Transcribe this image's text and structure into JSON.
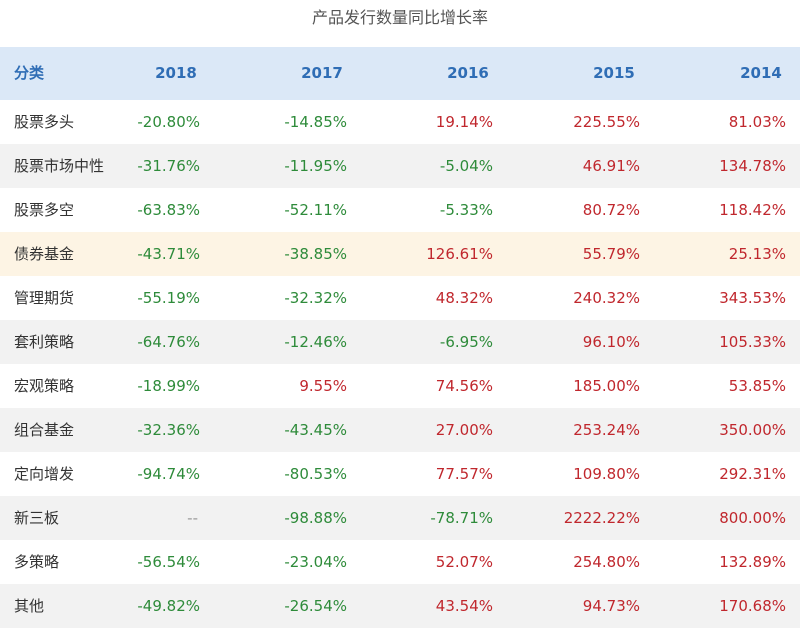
{
  "title": "产品发行数量同比增长率",
  "table": {
    "header": [
      "分类",
      "2018",
      "2017",
      "2016",
      "2015",
      "2014"
    ],
    "rows": [
      [
        "股票多头",
        "-20.80%",
        "-14.85%",
        "19.14%",
        "225.55%",
        "81.03%"
      ],
      [
        "股票市场中性",
        "-31.76%",
        "-11.95%",
        "-5.04%",
        "46.91%",
        "134.78%"
      ],
      [
        "股票多空",
        "-63.83%",
        "-52.11%",
        "-5.33%",
        "80.72%",
        "118.42%"
      ],
      [
        "债券基金",
        "-43.71%",
        "-38.85%",
        "126.61%",
        "55.79%",
        "25.13%"
      ],
      [
        "管理期货",
        "-55.19%",
        "-32.32%",
        "48.32%",
        "240.32%",
        "343.53%"
      ],
      [
        "套利策略",
        "-64.76%",
        "-12.46%",
        "-6.95%",
        "96.10%",
        "105.33%"
      ],
      [
        "宏观策略",
        "-18.99%",
        "9.55%",
        "74.56%",
        "185.00%",
        "53.85%"
      ],
      [
        "组合基金",
        "-32.36%",
        "-43.45%",
        "27.00%",
        "253.24%",
        "350.00%"
      ],
      [
        "定向增发",
        "-94.74%",
        "-80.53%",
        "77.57%",
        "109.80%",
        "292.31%"
      ],
      [
        "新三板",
        "--",
        "-98.88%",
        "-78.71%",
        "2222.22%",
        "800.00%"
      ],
      [
        "多策略",
        "-56.54%",
        "-23.04%",
        "52.07%",
        "254.80%",
        "132.89%"
      ],
      [
        "其他",
        "-49.82%",
        "-26.54%",
        "43.54%",
        "94.73%",
        "170.68%"
      ]
    ],
    "highlighted_row": 3
  }
}
